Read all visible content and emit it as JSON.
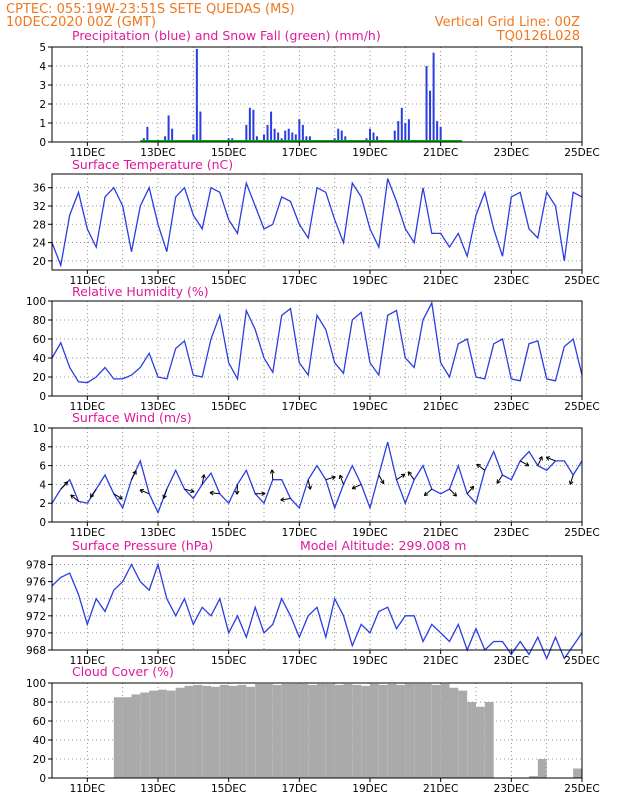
{
  "header": {
    "line1_left": "CPTEC:    055:19W-23:51S   SETE QUEDAS (MS)",
    "line2_left": "10DEC2020 00Z (GMT)",
    "line2_right": "Vertical Grid Line: 00Z",
    "line3_right": "TQ0126L028"
  },
  "colors": {
    "header": "#f07820",
    "title": "#e0199c",
    "line": "#2a3ee0",
    "snow": "#00b000",
    "cloud": "#aaaaaa",
    "arrow": "#000000"
  },
  "x_tick_labels": [
    "11DEC",
    "13DEC",
    "15DEC",
    "17DEC",
    "19DEC",
    "21DEC",
    "23DEC",
    "25DEC"
  ],
  "chart_data": [
    {
      "id": "precip",
      "type": "bar",
      "title": "Precipitation (blue) and Snow Fall (green) (mm/h)",
      "ylim": [
        0,
        5
      ],
      "yticks": [
        "0",
        "1",
        "2",
        "3",
        "4",
        "5"
      ],
      "series": [
        {
          "name": "Precipitation",
          "x": [
            12.6,
            12.7,
            13.2,
            13.3,
            13.4,
            14.0,
            14.1,
            14.2,
            14.9,
            15.0,
            15.1,
            15.5,
            15.6,
            15.7,
            15.8,
            16.0,
            16.1,
            16.2,
            16.3,
            16.4,
            16.5,
            16.6,
            16.7,
            16.8,
            16.9,
            17.0,
            17.1,
            17.2,
            17.3,
            18.0,
            18.1,
            18.2,
            18.3,
            18.9,
            19.0,
            19.1,
            19.2,
            19.7,
            19.8,
            19.9,
            20.0,
            20.1,
            20.6,
            20.7,
            20.8,
            20.9,
            21.0
          ],
          "values": [
            0.2,
            0.8,
            0.3,
            1.4,
            0.7,
            0.4,
            4.9,
            1.6,
            0.1,
            0.2,
            0.2,
            0.9,
            1.8,
            1.7,
            0.3,
            0.4,
            0.9,
            1.6,
            0.7,
            0.5,
            0.2,
            0.6,
            0.7,
            0.5,
            0.4,
            1.2,
            0.9,
            0.3,
            0.3,
            0.2,
            0.7,
            0.6,
            0.3,
            0.2,
            0.7,
            0.5,
            0.3,
            0.6,
            1.1,
            1.8,
            1.0,
            1.2,
            4.0,
            2.7,
            4.7,
            1.1,
            0.8
          ]
        },
        {
          "name": "Snow Fall",
          "x": [
            12.5,
            21.6
          ],
          "values": [
            0,
            0
          ]
        }
      ]
    },
    {
      "id": "temp",
      "type": "line",
      "title": "Surface Temperature (nC)",
      "ylim": [
        18,
        39
      ],
      "yticks": [
        "20",
        "24",
        "28",
        "32",
        "36"
      ],
      "x": [
        10.0,
        10.25,
        10.5,
        10.75,
        11.0,
        11.25,
        11.5,
        11.75,
        12.0,
        12.25,
        12.5,
        12.75,
        13.0,
        13.25,
        13.5,
        13.75,
        14.0,
        14.25,
        14.5,
        14.75,
        15.0,
        15.25,
        15.5,
        15.75,
        16.0,
        16.25,
        16.5,
        16.75,
        17.0,
        17.25,
        17.5,
        17.75,
        18.0,
        18.25,
        18.5,
        18.75,
        19.0,
        19.25,
        19.5,
        19.75,
        20.0,
        20.25,
        20.5,
        20.75,
        21.0,
        21.25,
        21.5,
        21.75,
        22.0,
        22.25,
        22.5,
        22.75,
        23.0,
        23.25,
        23.5,
        23.75,
        24.0,
        24.25,
        24.5,
        24.75,
        25.0
      ],
      "values": [
        24,
        19,
        30,
        35,
        27,
        23,
        34,
        36,
        32,
        22,
        32,
        36,
        28,
        22,
        34,
        36,
        30,
        27,
        36,
        35,
        29,
        26,
        37,
        32,
        27,
        28,
        34,
        33,
        28,
        25,
        36,
        35,
        29,
        24,
        37,
        34,
        27,
        23,
        38,
        33,
        27,
        24,
        36,
        26,
        26,
        23,
        26,
        21,
        30,
        35,
        27,
        21,
        34,
        35,
        27,
        25,
        35,
        32,
        20,
        35,
        34
      ]
    },
    {
      "id": "rh",
      "type": "line",
      "title": "Relative Humidity (%)",
      "ylim": [
        0,
        100
      ],
      "yticks": [
        "0",
        "20",
        "40",
        "60",
        "80",
        "100"
      ],
      "x": [
        10.0,
        10.25,
        10.5,
        10.75,
        11.0,
        11.25,
        11.5,
        11.75,
        12.0,
        12.25,
        12.5,
        12.75,
        13.0,
        13.25,
        13.5,
        13.75,
        14.0,
        14.25,
        14.5,
        14.75,
        15.0,
        15.25,
        15.5,
        15.75,
        16.0,
        16.25,
        16.5,
        16.75,
        17.0,
        17.25,
        17.5,
        17.75,
        18.0,
        18.25,
        18.5,
        18.75,
        19.0,
        19.25,
        19.5,
        19.75,
        20.0,
        20.25,
        20.5,
        20.75,
        21.0,
        21.25,
        21.5,
        21.75,
        22.0,
        22.25,
        22.5,
        22.75,
        23.0,
        23.25,
        23.5,
        23.75,
        24.0,
        24.25,
        24.5,
        24.75,
        25.0
      ],
      "values": [
        40,
        56,
        30,
        15,
        14,
        20,
        30,
        18,
        18,
        22,
        30,
        45,
        20,
        18,
        50,
        58,
        22,
        20,
        60,
        85,
        35,
        18,
        90,
        70,
        40,
        25,
        85,
        92,
        35,
        22,
        85,
        70,
        35,
        24,
        80,
        88,
        35,
        22,
        85,
        90,
        40,
        30,
        80,
        98,
        35,
        20,
        55,
        60,
        20,
        18,
        55,
        60,
        18,
        16,
        55,
        58,
        18,
        16,
        52,
        60,
        22
      ]
    },
    {
      "id": "wind",
      "type": "line",
      "title": "Surface Wind (m/s)",
      "ylim": [
        0,
        10
      ],
      "yticks": [
        "0",
        "2",
        "4",
        "6",
        "8",
        "10"
      ],
      "x": [
        10.0,
        10.25,
        10.5,
        10.75,
        11.0,
        11.25,
        11.5,
        11.75,
        12.0,
        12.25,
        12.5,
        12.75,
        13.0,
        13.25,
        13.5,
        13.75,
        14.0,
        14.25,
        14.5,
        14.75,
        15.0,
        15.25,
        15.5,
        15.75,
        16.0,
        16.25,
        16.5,
        16.75,
        17.0,
        17.25,
        17.5,
        17.75,
        18.0,
        18.25,
        18.5,
        18.75,
        19.0,
        19.25,
        19.5,
        19.75,
        20.0,
        20.25,
        20.5,
        20.75,
        21.0,
        21.25,
        21.5,
        21.75,
        22.0,
        22.25,
        22.5,
        22.75,
        23.0,
        23.25,
        23.5,
        23.75,
        24.0,
        24.25,
        24.5,
        24.75,
        25.0
      ],
      "values": [
        2.0,
        3.5,
        4.5,
        2.2,
        2.0,
        3.5,
        5.0,
        3.0,
        1.5,
        4.5,
        6.5,
        3.0,
        1.0,
        3.5,
        5.5,
        3.5,
        2.5,
        4.0,
        5.2,
        3.0,
        2.0,
        4.0,
        5.5,
        3.0,
        2.0,
        4.5,
        4.5,
        2.5,
        1.5,
        4.5,
        6.0,
        4.5,
        1.5,
        4.0,
        6.0,
        4.0,
        1.5,
        5.0,
        8.5,
        4.5,
        2.0,
        4.5,
        6.0,
        3.5,
        3.0,
        3.5,
        6.0,
        3.0,
        2.0,
        5.5,
        7.5,
        5.0,
        4.5,
        6.5,
        7.5,
        6.0,
        5.5,
        6.5,
        6.5,
        5.0,
        6.5
      ]
    },
    {
      "id": "pressure",
      "type": "line",
      "title": "Surface Pressure (hPa)",
      "ylim": [
        968,
        979
      ],
      "yticks": [
        "968",
        "970",
        "972",
        "974",
        "976",
        "978"
      ],
      "x": [
        10.0,
        10.25,
        10.5,
        10.75,
        11.0,
        11.25,
        11.5,
        11.75,
        12.0,
        12.25,
        12.5,
        12.75,
        13.0,
        13.25,
        13.5,
        13.75,
        14.0,
        14.25,
        14.5,
        14.75,
        15.0,
        15.25,
        15.5,
        15.75,
        16.0,
        16.25,
        16.5,
        16.75,
        17.0,
        17.25,
        17.5,
        17.75,
        18.0,
        18.25,
        18.5,
        18.75,
        19.0,
        19.25,
        19.5,
        19.75,
        20.0,
        20.25,
        20.5,
        20.75,
        21.0,
        21.25,
        21.5,
        21.75,
        22.0,
        22.25,
        22.5,
        22.75,
        23.0,
        23.25,
        23.5,
        23.75,
        24.0,
        24.25,
        24.5,
        24.75,
        25.0
      ],
      "values": [
        975.5,
        976.5,
        977,
        974.5,
        971,
        974,
        972.5,
        975,
        976,
        978,
        976,
        975,
        978,
        974,
        972,
        974,
        971,
        973,
        972,
        974,
        970,
        972,
        969.5,
        973,
        970,
        971,
        974,
        972,
        969.5,
        972,
        973,
        969.5,
        974,
        972,
        968.5,
        971,
        970,
        972.5,
        973,
        970.5,
        972,
        972,
        969,
        971,
        970,
        969,
        971,
        968,
        970.5,
        968,
        969,
        969,
        967.5,
        969,
        967.5,
        969.5,
        967,
        969.5,
        967,
        968.5,
        970
      ]
    },
    {
      "id": "cloud",
      "type": "bar",
      "title": "Cloud Cover (%)",
      "ylim": [
        0,
        100
      ],
      "yticks": [
        "0",
        "20",
        "40",
        "60",
        "80",
        "100"
      ],
      "x": [
        10.5,
        11.0,
        11.5,
        11.75,
        12.0,
        12.25,
        12.5,
        12.75,
        13.0,
        13.25,
        13.5,
        13.75,
        14.0,
        14.25,
        14.5,
        14.75,
        15.0,
        15.25,
        15.5,
        15.75,
        16.0,
        16.25,
        16.5,
        16.75,
        17.0,
        17.25,
        17.5,
        17.75,
        18.0,
        18.25,
        18.5,
        18.75,
        19.0,
        19.25,
        19.5,
        19.75,
        20.0,
        20.25,
        20.5,
        20.75,
        21.0,
        21.25,
        21.5,
        21.75,
        22.0,
        22.25,
        22.5,
        22.75,
        23.0,
        23.25,
        23.5,
        23.75,
        24.0,
        24.25,
        24.5,
        24.75,
        25.0
      ],
      "values": [
        0,
        0,
        0,
        85,
        85,
        88,
        90,
        92,
        93,
        92,
        95,
        97,
        98,
        97,
        96,
        98,
        97,
        98,
        96,
        99,
        99,
        98,
        99,
        99,
        99,
        98,
        99,
        99,
        98,
        99,
        98,
        97,
        99,
        98,
        99,
        98,
        99,
        99,
        99,
        98,
        99,
        95,
        92,
        80,
        75,
        80,
        0,
        0,
        0,
        0,
        2,
        20,
        0,
        0,
        0,
        10,
        0
      ]
    }
  ],
  "annotations": {
    "model_altitude": "Model Altitude: 299.008 m"
  }
}
